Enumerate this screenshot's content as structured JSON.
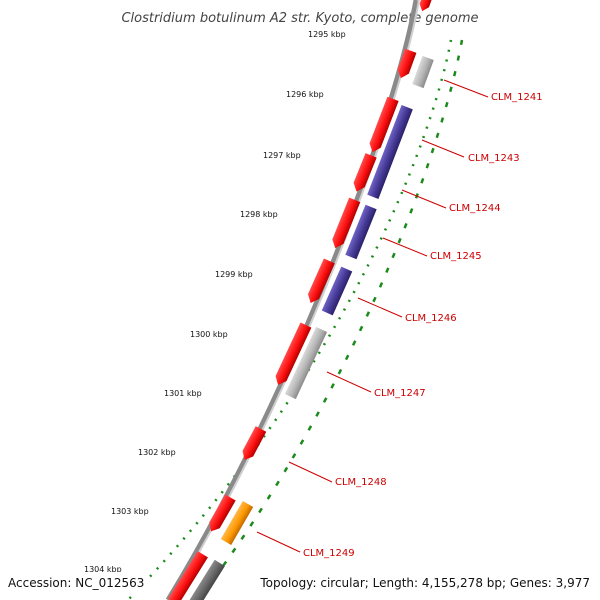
{
  "title": "Clostridium botulinum A2 str. Kyoto, complete genome",
  "footer": {
    "accession": "Accession: NC_012563",
    "summary": "Topology: circular; Length: 4,155,278 bp; Genes: 3,977"
  },
  "kbp_labels": [
    "1295 kbp",
    "1296 kbp",
    "1297 kbp",
    "1298 kbp",
    "1299 kbp",
    "1300 kbp",
    "1301 kbp",
    "1302 kbp",
    "1303 kbp",
    "1304 kbp"
  ],
  "genes": [
    {
      "name": "CLM_1241"
    },
    {
      "name": "CLM_1243"
    },
    {
      "name": "CLM_1244"
    },
    {
      "name": "CLM_1245"
    },
    {
      "name": "CLM_1246"
    },
    {
      "name": "CLM_1247"
    },
    {
      "name": "CLM_1248"
    },
    {
      "name": "CLM_1249"
    }
  ],
  "colors": {
    "gene_red": "#ff1a1a",
    "gene_purple": "#4b3f9a",
    "gene_gray": "#b8b8b8",
    "gene_orange": "#ff9900",
    "backbone": "#8a8a8a",
    "tick_green": "#1a8a1a",
    "label_red": "#cc0000"
  }
}
